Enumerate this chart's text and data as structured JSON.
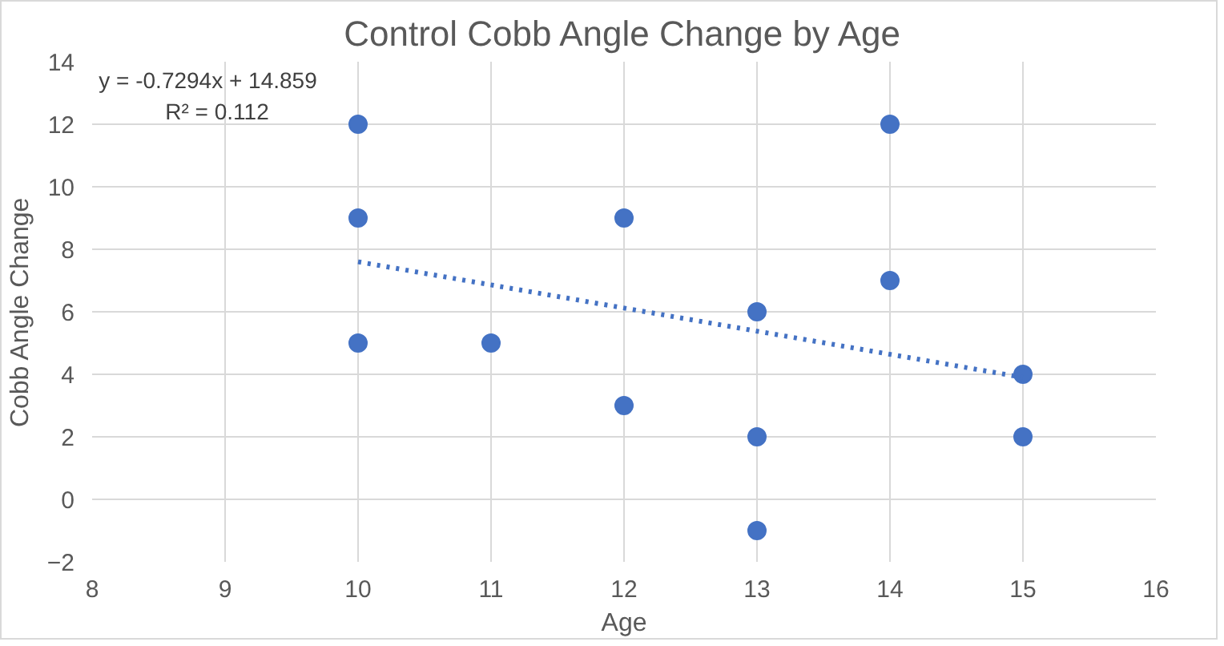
{
  "chart_data": {
    "type": "scatter",
    "title": "Control Cobb Angle Change by Age",
    "xlabel": "Age",
    "ylabel": "Cobb Angle Change",
    "series": [
      {
        "color": "#4472c4",
        "marker": "circle",
        "x": [
          10,
          10,
          10,
          11,
          12,
          12,
          13,
          13,
          13,
          14,
          14,
          15,
          15
        ],
        "values": [
          12,
          9,
          5,
          5,
          9,
          3,
          6,
          2,
          -1,
          12,
          7,
          4,
          2
        ]
      },
      {
        "type": "line",
        "color": "#4472c4",
        "line_style": "dotted",
        "x": [
          10,
          15
        ],
        "values": [
          7.6,
          3.9
        ]
      }
    ],
    "annotations": [
      "y = -0.7294x + 14.859",
      "R² = 0.112"
    ],
    "xlim": [
      8,
      16
    ],
    "xticks": [
      8,
      9,
      10,
      11,
      12,
      13,
      14,
      15,
      16
    ],
    "ylim": [
      -2,
      14
    ],
    "yticks": [
      -2,
      0,
      2,
      4,
      6,
      8,
      10,
      12,
      14
    ],
    "grid": true
  }
}
